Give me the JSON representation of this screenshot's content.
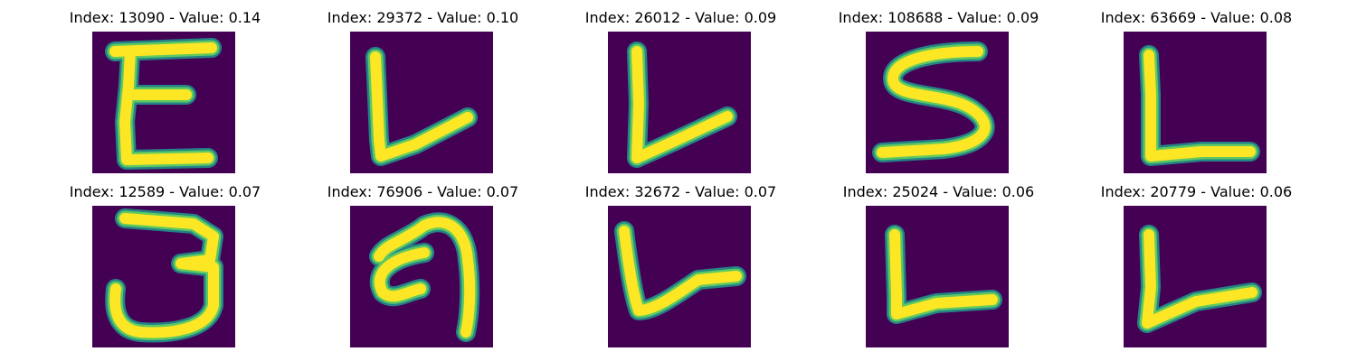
{
  "colors": {
    "background": "#440154",
    "glyph_core": "#fde725",
    "glyph_edge": "#5ec962",
    "glyph_outer": "#21918c"
  },
  "panels": [
    {
      "index": "13090",
      "value": "0.14",
      "shape": "letter-E"
    },
    {
      "index": "29372",
      "value": "0.10",
      "shape": "letter-L"
    },
    {
      "index": "26012",
      "value": "0.09",
      "shape": "letter-L"
    },
    {
      "index": "108688",
      "value": "0.09",
      "shape": "letter-S"
    },
    {
      "index": "63669",
      "value": "0.08",
      "shape": "letter-L"
    },
    {
      "index": "12589",
      "value": "0.07",
      "shape": "digit-3"
    },
    {
      "index": "76906",
      "value": "0.07",
      "shape": "curl-stroke"
    },
    {
      "index": "32672",
      "value": "0.07",
      "shape": "letter-L"
    },
    {
      "index": "25024",
      "value": "0.06",
      "shape": "letter-L"
    },
    {
      "index": "20779",
      "value": "0.06",
      "shape": "letter-L"
    }
  ]
}
